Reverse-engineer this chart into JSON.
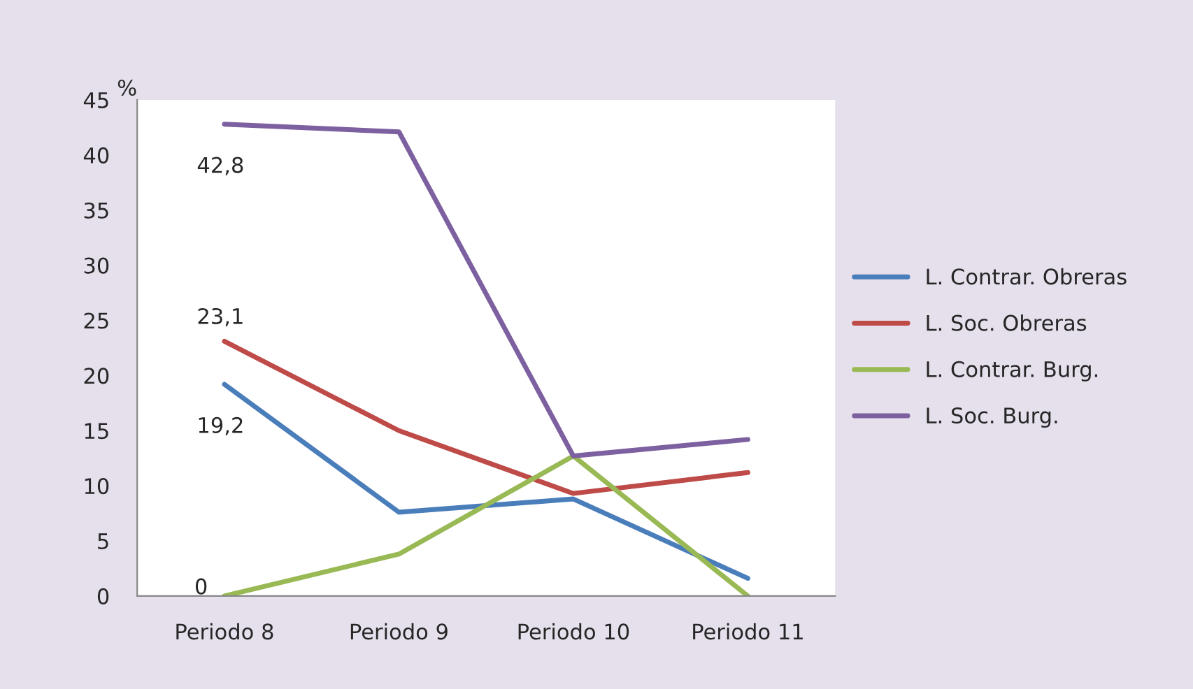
{
  "chart_data": {
    "type": "line",
    "ylabel": "%",
    "categories": [
      "Periodo 8",
      "Periodo 9",
      "Periodo 10",
      "Periodo 11"
    ],
    "series": [
      {
        "name": "L. Contrar. Obreras",
        "color": "#4a7ebb",
        "values": [
          19.2,
          7.6,
          8.8,
          1.6
        ],
        "value_labels": [
          "19,2",
          null,
          null,
          null
        ]
      },
      {
        "name": "L. Soc. Obreras",
        "color": "#be4b48",
        "values": [
          23.1,
          15.0,
          9.3,
          11.2
        ],
        "value_labels": [
          "23,1",
          null,
          null,
          null
        ]
      },
      {
        "name": "L. Contrar. Burg.",
        "color": "#98b954",
        "values": [
          0,
          3.8,
          12.7,
          0
        ],
        "value_labels": [
          "0",
          null,
          null,
          null
        ]
      },
      {
        "name": "L. Soc. Burg.",
        "color": "#7d60a0",
        "values": [
          42.8,
          42.1,
          12.7,
          14.2
        ],
        "value_labels": [
          "42,8",
          null,
          null,
          null
        ]
      }
    ],
    "ylim": [
      0,
      45
    ],
    "yticks": [
      0,
      5,
      10,
      15,
      20,
      25,
      30,
      35,
      40,
      45
    ],
    "grid": false,
    "legend": "right",
    "marker": "none",
    "line_style": "solid"
  }
}
